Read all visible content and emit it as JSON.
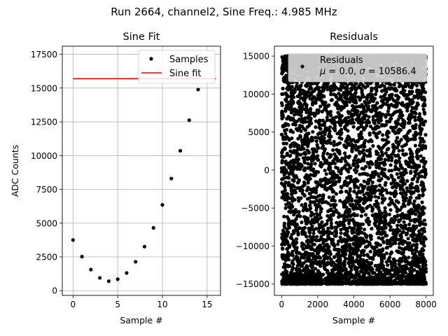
{
  "suptitle": "Run 2664, channel2, Sine Freq.: 4.985 MHz",
  "chart_data": [
    {
      "type": "scatter",
      "title": "Sine Fit",
      "xlabel": "Sample #",
      "ylabel": "ADC Counts",
      "xlim": [
        -1.2,
        16.5
      ],
      "ylim": [
        -350,
        18100
      ],
      "xticks": [
        0,
        5,
        10,
        15
      ],
      "yticks": [
        0,
        2500,
        5000,
        7500,
        10000,
        12500,
        15000,
        17500
      ],
      "xtick_labels": [
        "0",
        "5",
        "10",
        "15"
      ],
      "ytick_labels": [
        "0",
        "2500",
        "5000",
        "7500",
        "10000",
        "12500",
        "15000",
        "17500"
      ],
      "grid": true,
      "legend_position": "top-right",
      "legend": [
        "Samples",
        "Sine fit"
      ],
      "series": [
        {
          "name": "Samples",
          "marker": "dot",
          "color": "#000000",
          "x": [
            0,
            1,
            2,
            3,
            4,
            5,
            6,
            7,
            8,
            9,
            10,
            11,
            12,
            13,
            14
          ],
          "y": [
            3750,
            2520,
            1560,
            950,
            700,
            850,
            1310,
            2140,
            3260,
            4650,
            6350,
            8300,
            10360,
            12620,
            14890
          ]
        },
        {
          "name": "Sine fit",
          "line": true,
          "color": "#ff0000",
          "x": [
            0,
            16
          ],
          "y": [
            15700,
            15700
          ]
        }
      ]
    },
    {
      "type": "scatter",
      "title": "Residuals",
      "xlabel": "Sample #",
      "ylabel": "",
      "xlim": [
        -400,
        8400
      ],
      "ylim": [
        -16500,
        16300
      ],
      "xticks": [
        0,
        2000,
        4000,
        6000,
        8000
      ],
      "yticks": [
        -15000,
        -10000,
        -5000,
        0,
        5000,
        10000,
        15000
      ],
      "xtick_labels": [
        "0",
        "2000",
        "4000",
        "6000",
        "8000"
      ],
      "ytick_labels": [
        "−15000",
        "−10000",
        "−5000",
        "0",
        "5000",
        "10000",
        "15000"
      ],
      "grid": false,
      "legend_position": "top-right",
      "legend": [
        "Residuals",
        "μ = 0.0, σ = 10586.4"
      ],
      "series": [
        {
          "name": "Residuals",
          "marker": "dot",
          "color": "#000000",
          "x_range": [
            0,
            7999
          ],
          "y_range": [
            -15000,
            15000
          ],
          "mean": 0.0,
          "std": 10586.4
        }
      ]
    }
  ]
}
